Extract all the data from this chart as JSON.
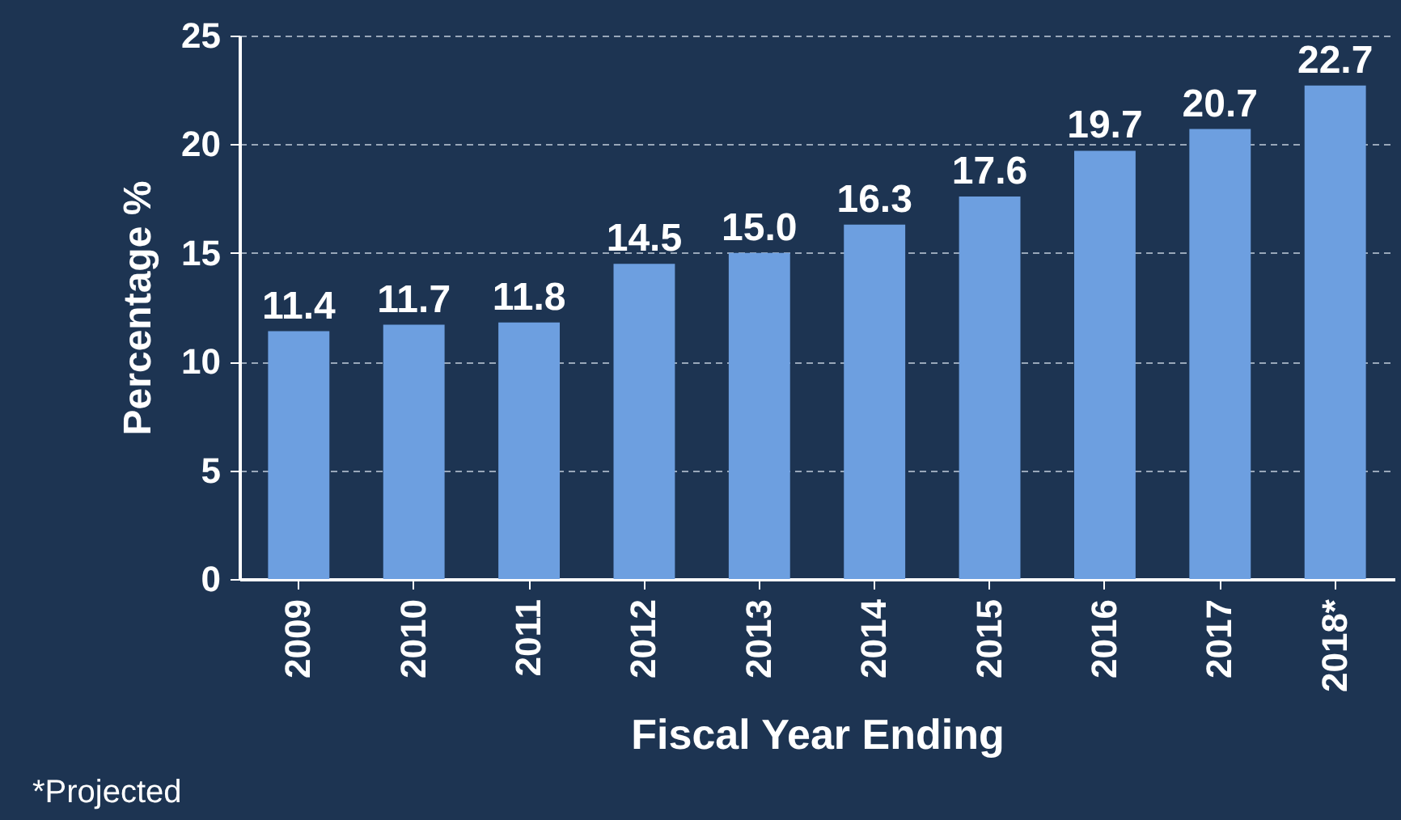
{
  "chart_data": {
    "type": "bar",
    "xlabel": "Fiscal Year Ending",
    "ylabel": "Percentage %",
    "categories": [
      "2009",
      "2010",
      "2011",
      "2012",
      "2013",
      "2014",
      "2015",
      "2016",
      "2017",
      "2018*"
    ],
    "values": [
      11.4,
      11.7,
      11.8,
      14.5,
      15.0,
      16.3,
      17.6,
      19.7,
      20.7,
      22.7
    ],
    "value_labels": [
      "11.4",
      "11.7",
      "11.8",
      "14.5",
      "15.0",
      "16.3",
      "17.6",
      "19.7",
      "20.7",
      "22.7"
    ],
    "color": "#6d9fe0",
    "ylim": [
      0,
      25
    ],
    "yticks": [
      0,
      5,
      10,
      15,
      20,
      25
    ],
    "grid": "y",
    "annotations": [
      "*Projected"
    ]
  }
}
